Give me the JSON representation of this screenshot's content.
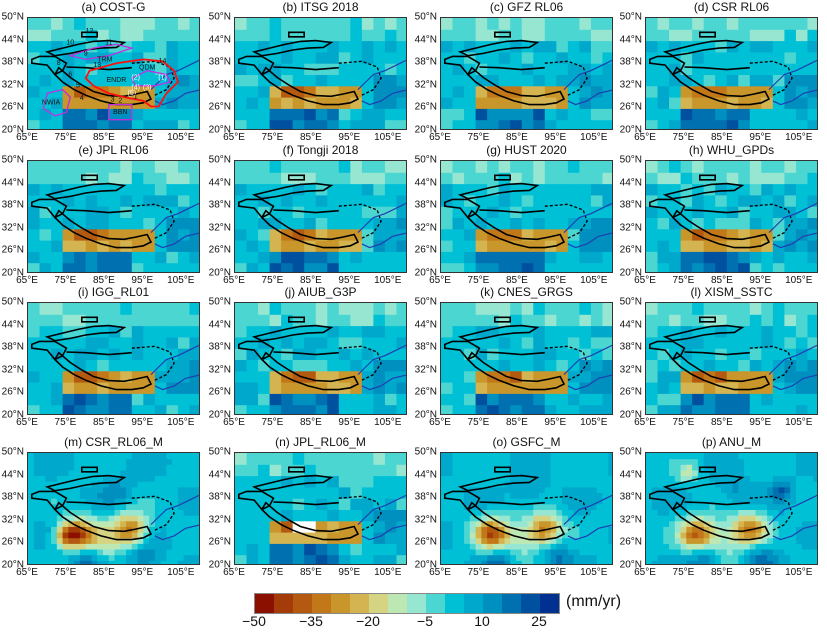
{
  "panels": [
    {
      "title": "(a) COST-G",
      "style": "grid"
    },
    {
      "title": "(b) ITSG 2018",
      "style": "grid"
    },
    {
      "title": "(c) GFZ RL06",
      "style": "grid"
    },
    {
      "title": "(d) CSR RL06",
      "style": "grid"
    },
    {
      "title": "(e) JPL RL06",
      "style": "grid"
    },
    {
      "title": "(f) Tongji 2018",
      "style": "grid"
    },
    {
      "title": "(g) HUST 2020",
      "style": "grid"
    },
    {
      "title": "(h) WHU_GPDs",
      "style": "grid"
    },
    {
      "title": "(i) IGG_RL01",
      "style": "grid"
    },
    {
      "title": "(j) AIUB_G3P",
      "style": "grid"
    },
    {
      "title": "(k) CNES_GRGS",
      "style": "grid"
    },
    {
      "title": "(l) XISM_SSTC",
      "style": "grid"
    },
    {
      "title": "(m) CSR_RL06_M",
      "style": "smooth"
    },
    {
      "title": "(n) JPL_RL06_M",
      "style": "grid"
    },
    {
      "title": "(o) GSFC_M",
      "style": "smooth"
    },
    {
      "title": "(p) ANU_M",
      "style": "smooth"
    }
  ],
  "axes": {
    "lat_ticks": [
      "20°N",
      "26°N",
      "32°N",
      "38°N",
      "44°N",
      "50°N"
    ],
    "lon_ticks": [
      "65°E",
      "75°E",
      "85°E",
      "95°E",
      "105°E"
    ],
    "lon_range": [
      65,
      110
    ],
    "lat_range": [
      20,
      50
    ]
  },
  "annotations": [
    "12",
    "10",
    "11",
    "9",
    "TRM",
    "8",
    "13",
    "14",
    "QDM",
    "6",
    "ENDR",
    "(2)",
    "(1)",
    "5",
    "(4)",
    "(3)",
    "4",
    "3",
    "(5)",
    "2",
    "1",
    "NWIA",
    "BBN"
  ],
  "colorbar": {
    "unit": "(mm/yr)",
    "ticks": [
      "−50",
      "−35",
      "−20",
      "−5",
      "10",
      "25"
    ],
    "min": -50,
    "max": 30,
    "step": 5,
    "colors": [
      "#8b1000",
      "#a33c08",
      "#b45a10",
      "#c27818",
      "#c8962a",
      "#d4b450",
      "#d4d482",
      "#bde8b4",
      "#96e6d2",
      "#4cd6d2",
      "#00c0d6",
      "#00a8cc",
      "#0090c0",
      "#0070b0",
      "#0050a0",
      "#003090"
    ]
  }
}
